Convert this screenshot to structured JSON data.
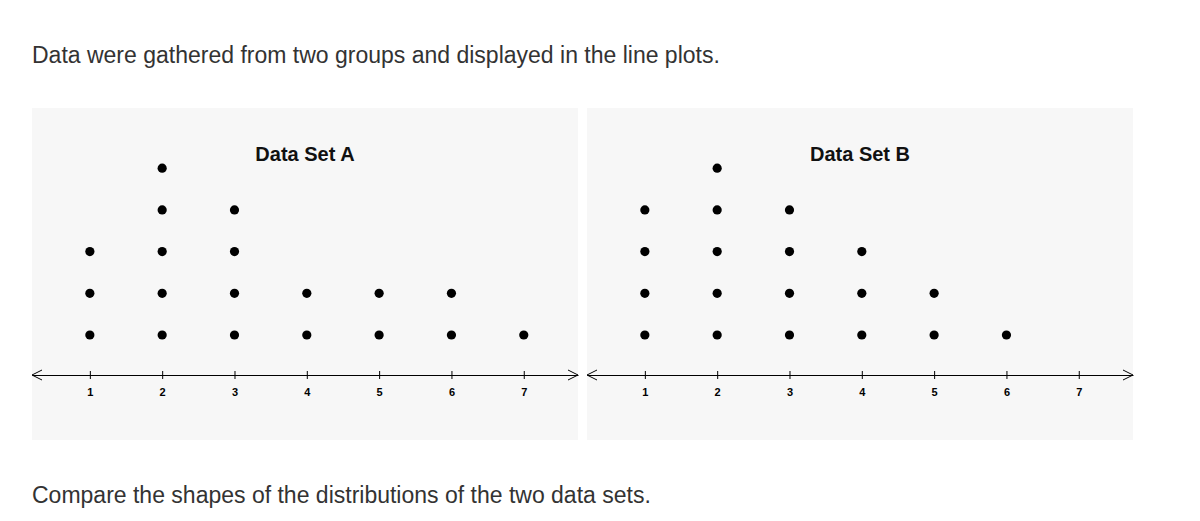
{
  "intro": "Data were gathered from two groups and displayed in the line plots.",
  "question": "Compare the shapes of the distributions of the two data sets.",
  "chart_data": [
    {
      "type": "dot",
      "title": "Data Set A",
      "x": [
        1,
        2,
        3,
        4,
        5,
        6,
        7
      ],
      "values": [
        3,
        5,
        4,
        2,
        2,
        2,
        1
      ],
      "xlim": [
        0.2,
        7.75
      ],
      "xticks": [
        1,
        2,
        3,
        4,
        5,
        6,
        7
      ],
      "color": "#000000"
    },
    {
      "type": "dot",
      "title": "Data Set B",
      "x": [
        1,
        2,
        3,
        4,
        5,
        6,
        7
      ],
      "values": [
        4,
        5,
        4,
        3,
        2,
        1,
        0
      ],
      "xlim": [
        0.2,
        7.75
      ],
      "xticks": [
        1,
        2,
        3,
        4,
        5,
        6,
        7
      ],
      "color": "#000000"
    }
  ]
}
